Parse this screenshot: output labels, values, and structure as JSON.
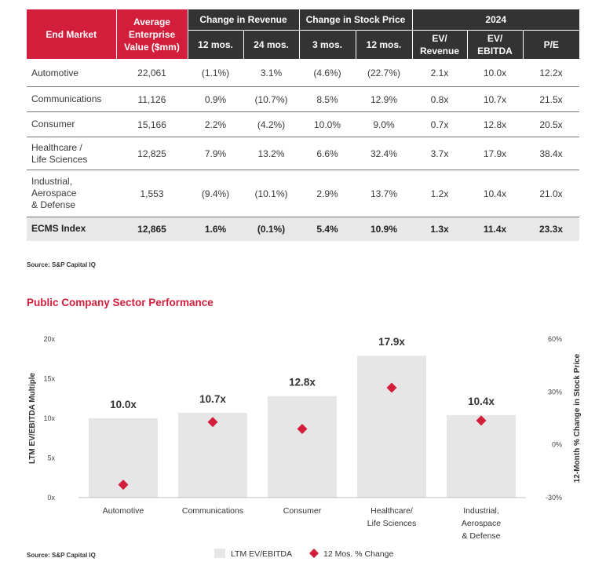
{
  "table": {
    "headers": {
      "end_market": "End Market",
      "avg_ev": "Average Enterprise Value ($mm)",
      "chg_rev": "Change in Revenue",
      "chg_stock": "Change in Stock Price",
      "year": "2024",
      "rev_12": "12 mos.",
      "rev_24": "24 mos.",
      "stock_3": "3 mos.",
      "stock_12": "12 mos.",
      "ev_rev": "EV/ Revenue",
      "ev_ebitda": "EV/ EBITDA",
      "pe": "P/E"
    },
    "rows": [
      {
        "market": "Automotive",
        "ev": "22,061",
        "rev12": "(1.1%)",
        "rev24": "3.1%",
        "st3": "(4.6%)",
        "st12": "(22.7%)",
        "evrev": "2.1x",
        "evebitda": "10.0x",
        "pe": "12.2x"
      },
      {
        "market": "Communications",
        "ev": "11,126",
        "rev12": "0.9%",
        "rev24": "(10.7%)",
        "st3": "8.5%",
        "st12": "12.9%",
        "evrev": "0.8x",
        "evebitda": "10.7x",
        "pe": "21.5x"
      },
      {
        "market": "Consumer",
        "ev": "15,166",
        "rev12": "2.2%",
        "rev24": "(4.2%)",
        "st3": "10.0%",
        "st12": "9.0%",
        "evrev": "0.7x",
        "evebitda": "12.8x",
        "pe": "20.5x"
      },
      {
        "market": "Healthcare / Life Sciences",
        "ev": "12,825",
        "rev12": "7.9%",
        "rev24": "13.2%",
        "st3": "6.6%",
        "st12": "32.4%",
        "evrev": "3.7x",
        "evebitda": "17.9x",
        "pe": "38.4x"
      },
      {
        "market": "Industrial, Aerospace & Defense",
        "ev": "1,553",
        "rev12": "(9.4%)",
        "rev24": "(10.1%)",
        "st3": "2.9%",
        "st12": "13.7%",
        "evrev": "1.2x",
        "evebitda": "10.4x",
        "pe": "21.0x"
      }
    ],
    "index_row": {
      "market": "ECMS Index",
      "ev": "12,865",
      "rev12": "1.6%",
      "rev24": "(0.1%)",
      "st3": "5.4%",
      "st12": "10.9%",
      "evrev": "1.3x",
      "evebitda": "11.4x",
      "pe": "23.3x"
    }
  },
  "source_table": "Source: S&P Capital IQ",
  "section_title": "Public Company Sector Performance",
  "source_chart": "Source: S&P Capital IQ",
  "colors": {
    "red": "#d31e3b",
    "dark": "#333333",
    "bar": "#e6e6e6",
    "index_bg": "#e8e8e8"
  },
  "chart_data": {
    "type": "bar",
    "categories": [
      [
        "Automotive"
      ],
      [
        "Communications"
      ],
      [
        "Consumer"
      ],
      [
        "Healthcare/",
        "Life Sciences"
      ],
      [
        "Industrial,",
        "Aerospace",
        "& Defense"
      ]
    ],
    "series": [
      {
        "name": "LTM EV/EBITDA",
        "type": "bar",
        "axis": "left",
        "values": [
          10.0,
          10.7,
          12.8,
          17.9,
          10.4
        ],
        "labels": [
          "10.0x",
          "10.7x",
          "12.8x",
          "17.9x",
          "10.4x"
        ]
      },
      {
        "name": "12 Mos. % Change",
        "type": "scatter",
        "marker": "diamond",
        "axis": "right",
        "values": [
          -22.7,
          12.9,
          9.0,
          32.4,
          13.7
        ]
      }
    ],
    "ylabel": "LTM EV/EBITDA Multiple",
    "ylim": [
      0,
      20
    ],
    "yticks": [
      "0x",
      "5x",
      "10x",
      "15x",
      "20x"
    ],
    "y2label": "12-Month % Change in Stock Price",
    "y2lim": [
      -30,
      60
    ],
    "y2ticks": [
      "-30%",
      "0%",
      "30%",
      "60%"
    ],
    "legend_placement": "bottom-center"
  }
}
